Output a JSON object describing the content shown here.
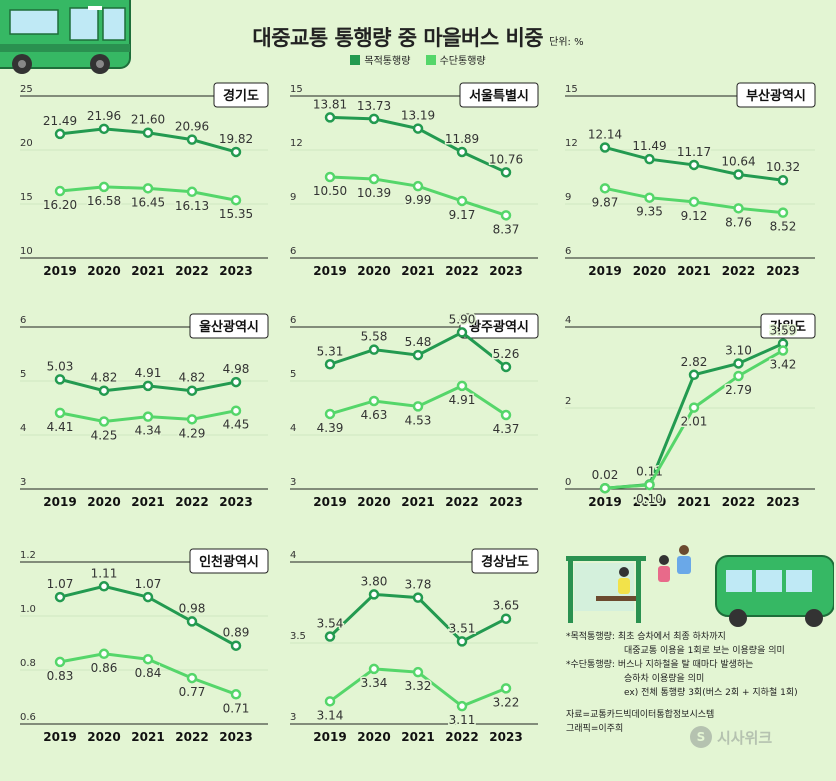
{
  "header": {
    "title": "대중교통 통행량 중 마을버스 비중",
    "unit": "단위: %"
  },
  "legend": {
    "items": [
      {
        "label": "목적통행량",
        "color": "#239a50"
      },
      {
        "label": "수단통행량",
        "color": "#55d66a"
      }
    ]
  },
  "notes": {
    "purpose_label": "*목적통행량:",
    "purpose_text_1": "최초 승차에서 최종 하차까지",
    "purpose_text_2": "대중교통 이용을 1회로 보는 이용량을 의미",
    "mode_label": "*수단통행량:",
    "mode_text_1": "버스나 지하철을 탈 때마다 발생하는",
    "mode_text_2": "승하차 이용량을 의미",
    "example": "ex) 전체 통행량 3회(버스 2회 + 지하철 1회)"
  },
  "source": {
    "line1": "자료=교통카드빅데이터통합정보시스템",
    "line2": "그래픽=이주희"
  },
  "brand": {
    "name": "시사위크"
  },
  "chart_data": [
    {
      "type": "line",
      "title": "경기도",
      "x": [
        "2019",
        "2020",
        "2021",
        "2022",
        "2023"
      ],
      "yticks": [
        25,
        20,
        15,
        10
      ],
      "ylim": [
        10,
        25
      ],
      "series": [
        {
          "name": "목적통행량",
          "values": [
            21.49,
            21.96,
            21.6,
            20.96,
            19.82
          ],
          "labels": [
            "21.49",
            "21.96",
            "21.60",
            "20.96",
            "19.82"
          ]
        },
        {
          "name": "수단통행량",
          "values": [
            16.2,
            16.58,
            16.45,
            16.13,
            15.35
          ],
          "labels": [
            "16.20",
            "16.58",
            "16.45",
            "16.13",
            "15.35"
          ]
        }
      ]
    },
    {
      "type": "line",
      "title": "서울특별시",
      "x": [
        "2019",
        "2020",
        "2021",
        "2022",
        "2023"
      ],
      "yticks": [
        15,
        12,
        9,
        6
      ],
      "ylim": [
        6,
        15
      ],
      "series": [
        {
          "name": "목적통행량",
          "values": [
            13.81,
            13.73,
            13.19,
            11.89,
            10.76
          ],
          "labels": [
            "13.81",
            "13.73",
            "13.19",
            "11.89",
            "10.76"
          ]
        },
        {
          "name": "수단통행량",
          "values": [
            10.5,
            10.39,
            9.99,
            9.17,
            8.37
          ],
          "labels": [
            "10.50",
            "10.39",
            "9.99",
            "9.17",
            "8.37"
          ]
        }
      ]
    },
    {
      "type": "line",
      "title": "부산광역시",
      "x": [
        "2019",
        "2020",
        "2021",
        "2022",
        "2023"
      ],
      "yticks": [
        15,
        12,
        9,
        6
      ],
      "ylim": [
        6,
        15
      ],
      "series": [
        {
          "name": "목적통행량",
          "values": [
            12.14,
            11.49,
            11.17,
            10.64,
            10.32
          ],
          "labels": [
            "12.14",
            "11.49",
            "11.17",
            "10.64",
            "10.32"
          ]
        },
        {
          "name": "수단통행량",
          "values": [
            9.87,
            9.35,
            9.12,
            8.76,
            8.52
          ],
          "labels": [
            "9.87",
            "9.35",
            "9.12",
            "8.76",
            "8.52"
          ]
        }
      ]
    },
    {
      "type": "line",
      "title": "울산광역시",
      "x": [
        "2019",
        "2020",
        "2021",
        "2022",
        "2023"
      ],
      "yticks": [
        6,
        5,
        4,
        3
      ],
      "ylim": [
        3,
        6
      ],
      "series": [
        {
          "name": "목적통행량",
          "values": [
            5.03,
            4.82,
            4.91,
            4.82,
            4.98
          ],
          "labels": [
            "5.03",
            "4.82",
            "4.91",
            "4.82",
            "4.98"
          ]
        },
        {
          "name": "수단통행량",
          "values": [
            4.41,
            4.25,
            4.34,
            4.29,
            4.45
          ],
          "labels": [
            "4.41",
            "4.25",
            "4.34",
            "4.29",
            "4.45"
          ]
        }
      ]
    },
    {
      "type": "line",
      "title": "광주광역시",
      "x": [
        "2019",
        "2020",
        "2021",
        "2022",
        "2023"
      ],
      "yticks": [
        6,
        5,
        4,
        3
      ],
      "ylim": [
        3,
        6
      ],
      "series": [
        {
          "name": "목적통행량",
          "values": [
            5.31,
            5.58,
            5.48,
            5.9,
            5.26
          ],
          "labels": [
            "5.31",
            "5.58",
            "5.48",
            "5.90",
            "5.26"
          ]
        },
        {
          "name": "수단통행량",
          "values": [
            4.39,
            4.63,
            4.53,
            4.91,
            4.37
          ],
          "labels": [
            "4.39",
            "4.63",
            "4.53",
            "4.91",
            "4.37"
          ]
        }
      ]
    },
    {
      "type": "line",
      "title": "강원도",
      "x": [
        "2019",
        "2020",
        "2021",
        "2022",
        "2023"
      ],
      "yticks": [
        4,
        2,
        0
      ],
      "ylim": [
        0,
        4
      ],
      "series": [
        {
          "name": "목적통행량",
          "values": [
            0.02,
            0.11,
            2.82,
            3.1,
            3.59
          ],
          "labels": [
            "0.02",
            "0.11",
            "2.82",
            "3.10",
            "3.59"
          ]
        },
        {
          "name": "수단통행량",
          "values": [
            0.02,
            0.1,
            2.01,
            2.79,
            3.42
          ],
          "labels": [
            "",
            "0.10",
            "2.01",
            "2.79",
            "3.42"
          ]
        }
      ]
    },
    {
      "type": "line",
      "title": "인천광역시",
      "x": [
        "2019",
        "2020",
        "2021",
        "2022",
        "2023"
      ],
      "yticks": [
        1.2,
        1.0,
        0.8,
        0.6
      ],
      "ylim": [
        0.6,
        1.2
      ],
      "ytick_labels": [
        "1.2",
        "1.0",
        "0.8",
        "0.6"
      ],
      "series": [
        {
          "name": "목적통행량",
          "values": [
            1.07,
            1.11,
            1.07,
            0.98,
            0.89
          ],
          "labels": [
            "1.07",
            "1.11",
            "1.07",
            "0.98",
            "0.89"
          ]
        },
        {
          "name": "수단통행량",
          "values": [
            0.83,
            0.86,
            0.84,
            0.77,
            0.71
          ],
          "labels": [
            "0.83",
            "0.86",
            "0.84",
            "0.77",
            "0.71"
          ]
        }
      ]
    },
    {
      "type": "line",
      "title": "경상남도",
      "x": [
        "2019",
        "2020",
        "2021",
        "2022",
        "2023"
      ],
      "yticks": [
        4,
        3.5,
        3
      ],
      "ylim": [
        3,
        4
      ],
      "series": [
        {
          "name": "목적통행량",
          "values": [
            3.54,
            3.8,
            3.78,
            3.51,
            3.65
          ],
          "labels": [
            "3.54",
            "3.80",
            "3.78",
            "3.51",
            "3.65"
          ]
        },
        {
          "name": "수단통행량",
          "values": [
            3.14,
            3.34,
            3.32,
            3.11,
            3.22
          ],
          "labels": [
            "3.14",
            "3.34",
            "3.32",
            "3.11",
            "3.22"
          ]
        }
      ]
    }
  ]
}
